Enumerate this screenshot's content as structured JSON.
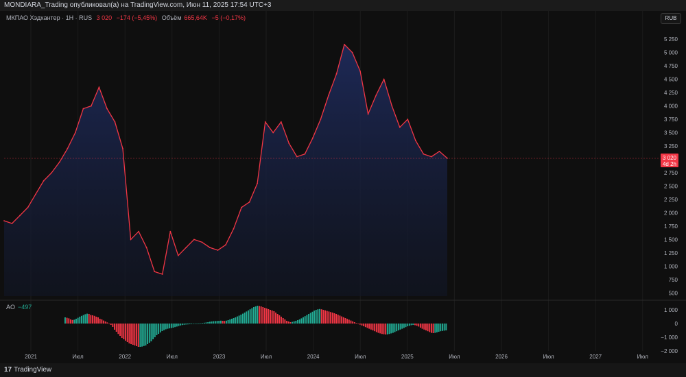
{
  "publisher_text": "MONDIARA_Trading опубликовал(а) на TradingView.com, Июн 11, 2025 17:54 UTC+3",
  "legend": {
    "symbol": "МКПАО Хэдхантер · 1Н · RUS",
    "price": "3 020",
    "change": "−174 (−5,45%)",
    "volume_label": "Объём",
    "volume_value": "665,64K",
    "volume_change": "−5 (−0,17%)"
  },
  "currency_button": "RUB",
  "price_tag": {
    "value": "3 020",
    "time": "4d 2h"
  },
  "ao": {
    "label": "AO",
    "value": "−497"
  },
  "footer": {
    "logo_mark": "17",
    "brand": "TradingView"
  },
  "colors": {
    "line": "#f23645",
    "ao_up": "#22ab94",
    "ao_down": "#f23645",
    "background": "#0f0f0f"
  },
  "chart_data": [
    {
      "type": "area",
      "series": [
        {
          "name": "МКПАО Хэдхантер",
          "x": [
            "2020-10",
            "2020-11",
            "2020-12",
            "2021-01",
            "2021-02",
            "2021-03",
            "2021-04",
            "2021-05",
            "2021-06",
            "2021-07",
            "2021-08",
            "2021-09",
            "2021-10",
            "2021-11",
            "2021-12",
            "2022-01",
            "2022-02",
            "2022-03",
            "2022-04",
            "2022-05",
            "2022-06",
            "2022-07",
            "2022-08",
            "2022-09",
            "2022-10",
            "2022-11",
            "2022-12",
            "2023-01",
            "2023-02",
            "2023-03",
            "2023-04",
            "2023-05",
            "2023-06",
            "2023-07",
            "2023-08",
            "2023-09",
            "2023-10",
            "2023-11",
            "2023-12",
            "2024-01",
            "2024-02",
            "2024-03",
            "2024-04",
            "2024-05",
            "2024-06",
            "2024-07",
            "2024-08",
            "2024-09",
            "2024-10",
            "2024-11",
            "2024-12",
            "2025-01",
            "2025-02",
            "2025-03",
            "2025-04",
            "2025-05",
            "2025-06"
          ],
          "values": [
            1850,
            1800,
            1950,
            2100,
            2350,
            2600,
            2750,
            2950,
            3200,
            3500,
            3950,
            4000,
            4350,
            3950,
            3700,
            3200,
            1500,
            1650,
            1350,
            900,
            850,
            1650,
            1200,
            1350,
            1500,
            1450,
            1350,
            1300,
            1400,
            1700,
            2100,
            2200,
            2550,
            3700,
            3500,
            3700,
            3300,
            3050,
            3100,
            3400,
            3750,
            4200,
            4600,
            5150,
            5000,
            4650,
            3850,
            4200,
            4500,
            4000,
            3600,
            3750,
            3350,
            3100,
            3050,
            3150,
            3020
          ]
        }
      ],
      "y_ticks": [
        "5 250",
        "5 000",
        "4 750",
        "4 500",
        "4 250",
        "4 000",
        "3 750",
        "3 500",
        "3 250",
        "2 750",
        "2 500",
        "2 250",
        "2 000",
        "1 750",
        "1 500",
        "1 250",
        "1 000",
        "750",
        "500"
      ],
      "ylim": [
        440,
        5470
      ],
      "x_ticks": [
        "2021",
        "Июл",
        "2022",
        "Июл",
        "2023",
        "Июл",
        "2024",
        "Июл",
        "2025",
        "Июл",
        "2026",
        "Июл",
        "2027",
        "Июл"
      ],
      "last_value": 3020
    },
    {
      "type": "bar",
      "name": "AO",
      "values": [
        450,
        420,
        380,
        300,
        260,
        280,
        350,
        420,
        500,
        560,
        620,
        680,
        720,
        700,
        620,
        600,
        560,
        500,
        450,
        350,
        300,
        220,
        150,
        80,
        0,
        -100,
        -250,
        -450,
        -600,
        -760,
        -900,
        -1050,
        -1150,
        -1250,
        -1350,
        -1450,
        -1500,
        -1550,
        -1600,
        -1650,
        -1700,
        -1700,
        -1680,
        -1640,
        -1600,
        -1500,
        -1400,
        -1300,
        -1150,
        -1000,
        -850,
        -750,
        -650,
        -550,
        -480,
        -420,
        -380,
        -350,
        -330,
        -300,
        -260,
        -220,
        -180,
        -140,
        -110,
        -90,
        -70,
        -60,
        -50,
        -40,
        -30,
        -20,
        -10,
        10,
        20,
        40,
        60,
        80,
        100,
        130,
        150,
        170,
        180,
        190,
        200,
        210,
        200,
        190,
        210,
        250,
        300,
        350,
        400,
        450,
        520,
        580,
        650,
        720,
        800,
        880,
        960,
        1040,
        1120,
        1200,
        1250,
        1300,
        1280,
        1250,
        1200,
        1150,
        1100,
        1050,
        1000,
        950,
        900,
        800,
        700,
        600,
        500,
        400,
        300,
        200,
        150,
        100,
        120,
        160,
        200,
        250,
        300,
        380,
        460,
        540,
        620,
        700,
        780,
        860,
        940,
        1000,
        1040,
        1060,
        1040,
        1000,
        960,
        920,
        880,
        840,
        800,
        750,
        700,
        640,
        580,
        520,
        460,
        400,
        340,
        280,
        220,
        160,
        100,
        40,
        -20,
        -80,
        -140,
        -200,
        -260,
        -320,
        -380,
        -440,
        -500,
        -560,
        -620,
        -680,
        -720,
        -760,
        -780,
        -800,
        -790,
        -760,
        -720,
        -680,
        -620,
        -560,
        -500,
        -440,
        -380,
        -320,
        -260,
        -200,
        -160,
        -120,
        -100,
        -120,
        -160,
        -220,
        -300,
        -380,
        -440,
        -500,
        -560,
        -620,
        -680,
        -700,
        -680,
        -640,
        -600,
        -560,
        -540,
        -520,
        -500
      ],
      "y_ticks": [
        "1 000",
        "0",
        "−1 000",
        "−2 000"
      ],
      "ylim": [
        -2000,
        1200
      ]
    }
  ]
}
